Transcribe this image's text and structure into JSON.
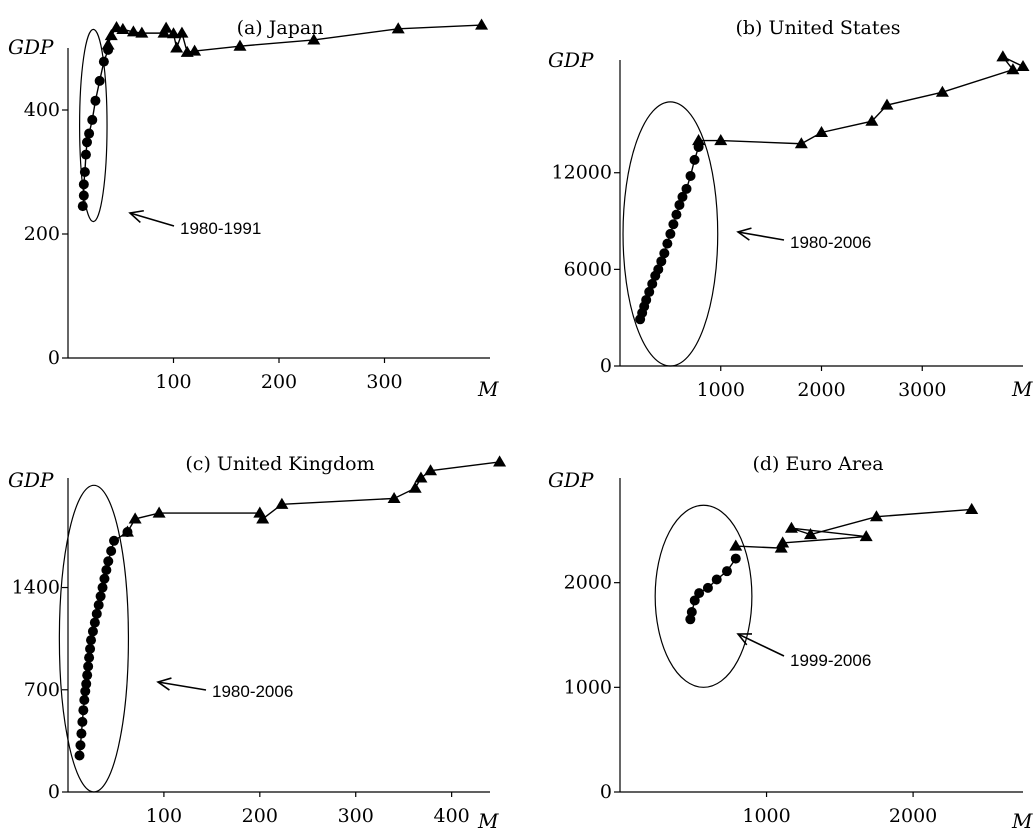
{
  "chart_data": [
    {
      "type": "line",
      "title": "(a) Japan",
      "xlabel": "M",
      "ylabel": "GDP",
      "xlim": [
        0,
        400
      ],
      "ylim": [
        0,
        500
      ],
      "xticks": [
        100,
        200,
        300
      ],
      "yticks": [
        0,
        200,
        400
      ],
      "grid": false,
      "annotation": "1980-1991",
      "highlight_ellipse": {
        "cx": 24,
        "cy": 375,
        "rx": 13,
        "ry": 155
      },
      "series": [
        {
          "marker": "circle",
          "x": [
            14,
            15,
            15,
            16,
            17,
            18,
            20,
            23,
            26,
            30,
            34,
            38
          ],
          "y": [
            245,
            262,
            280,
            300,
            328,
            348,
            362,
            384,
            415,
            447,
            478,
            497
          ]
        },
        {
          "marker": "triangle",
          "x": [
            38,
            41,
            46,
            52,
            62,
            70,
            91,
            93,
            100,
            103,
            108,
            113,
            120,
            163,
            233,
            313,
            392
          ],
          "y": [
            505,
            520,
            533,
            530,
            526,
            524,
            524,
            532,
            523,
            500,
            524,
            493,
            495,
            503,
            513,
            531,
            537
          ]
        }
      ]
    },
    {
      "type": "line",
      "title": "(b) United States",
      "xlabel": "M",
      "ylabel": "GDP",
      "xlim": [
        0,
        4000
      ],
      "ylim": [
        0,
        19000
      ],
      "xticks": [
        1000,
        2000,
        3000
      ],
      "yticks": [
        0,
        6000,
        12000
      ],
      "grid": false,
      "annotation": "1980-2006",
      "highlight_ellipse": {
        "cx": 500,
        "cy": 8200,
        "rx": 470,
        "ry": 8200
      },
      "series": [
        {
          "marker": "circle",
          "x": [
            200,
            220,
            240,
            260,
            290,
            320,
            350,
            380,
            410,
            440,
            470,
            500,
            530,
            560,
            590,
            620,
            660,
            700,
            740,
            780
          ],
          "y": [
            2900,
            3300,
            3700,
            4100,
            4600,
            5100,
            5600,
            6000,
            6500,
            7000,
            7600,
            8200,
            8800,
            9400,
            10000,
            10500,
            11000,
            11800,
            12800,
            13600
          ]
        },
        {
          "marker": "triangle",
          "x": [
            780,
            1000,
            1800,
            2000,
            2500,
            2650,
            3200,
            3900,
            3800,
            4000
          ],
          "y": [
            14000,
            14000,
            13800,
            14500,
            15200,
            16200,
            17000,
            18400,
            19200,
            18600
          ]
        }
      ]
    },
    {
      "type": "line",
      "title": "(c) United Kingdom",
      "xlabel": "M",
      "ylabel": "GDP",
      "xlim": [
        0,
        440
      ],
      "ylim": [
        0,
        2150
      ],
      "xticks": [
        100,
        200,
        300,
        400
      ],
      "yticks": [
        0,
        700,
        1400
      ],
      "grid": false,
      "annotation": "1980-2006",
      "highlight_ellipse": {
        "cx": 27,
        "cy": 1050,
        "rx": 36,
        "ry": 1050
      },
      "series": [
        {
          "marker": "circle",
          "x": [
            12,
            13,
            14,
            15,
            16,
            17,
            18,
            19,
            20,
            21,
            22,
            23,
            24,
            26,
            28,
            30,
            32,
            34,
            36,
            38,
            40,
            42,
            45,
            48,
            62
          ],
          "y": [
            250,
            320,
            400,
            480,
            560,
            630,
            690,
            740,
            800,
            860,
            920,
            980,
            1040,
            1100,
            1160,
            1220,
            1280,
            1340,
            1400,
            1460,
            1520,
            1580,
            1650,
            1720,
            1780
          ]
        },
        {
          "marker": "triangle",
          "x": [
            62,
            70,
            95,
            200,
            203,
            223,
            340,
            362,
            368,
            378,
            450
          ],
          "y": [
            1780,
            1870,
            1910,
            1910,
            1870,
            1970,
            2010,
            2080,
            2150,
            2200,
            2260
          ]
        }
      ]
    },
    {
      "type": "line",
      "title": "(d) Euro Area",
      "xlabel": "M",
      "ylabel": "GDP",
      "xlim": [
        0,
        2750
      ],
      "ylim": [
        0,
        3000
      ],
      "xticks": [
        1000,
        2000
      ],
      "yticks": [
        0,
        1000,
        2000
      ],
      "grid": false,
      "annotation": "1999-2006",
      "highlight_ellipse": {
        "cx": 570,
        "cy": 1870,
        "rx": 330,
        "ry": 870
      },
      "series": [
        {
          "marker": "circle",
          "x": [
            480,
            490,
            510,
            540,
            600,
            660,
            730,
            790
          ],
          "y": [
            1650,
            1720,
            1830,
            1900,
            1950,
            2030,
            2110,
            2230
          ]
        },
        {
          "marker": "triangle",
          "x": [
            790,
            1100,
            1110,
            1680,
            1170,
            1300,
            1750,
            2400
          ],
          "y": [
            2350,
            2330,
            2380,
            2440,
            2520,
            2460,
            2630,
            2700
          ]
        }
      ]
    }
  ]
}
